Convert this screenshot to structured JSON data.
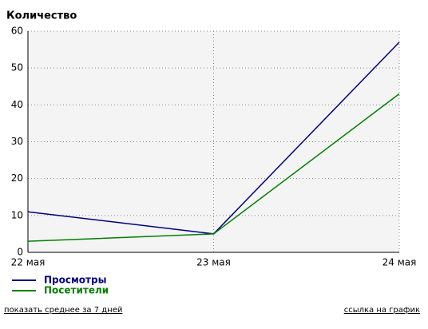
{
  "chart_data": {
    "type": "line",
    "title": "Количество",
    "categories": [
      "22 мая",
      "23 мая",
      "24 мая"
    ],
    "series": [
      {
        "name": "Просмотры",
        "color": "#000080",
        "values": [
          11,
          5,
          57
        ]
      },
      {
        "name": "Посетители",
        "color": "#008000",
        "values": [
          3,
          5,
          43
        ]
      }
    ],
    "ylim": [
      0,
      60
    ],
    "yticks": [
      0,
      10,
      20,
      30,
      40,
      50,
      60
    ],
    "grid": true
  },
  "links": [
    "показать среднее за 7 дней",
    "ссылка на график"
  ]
}
